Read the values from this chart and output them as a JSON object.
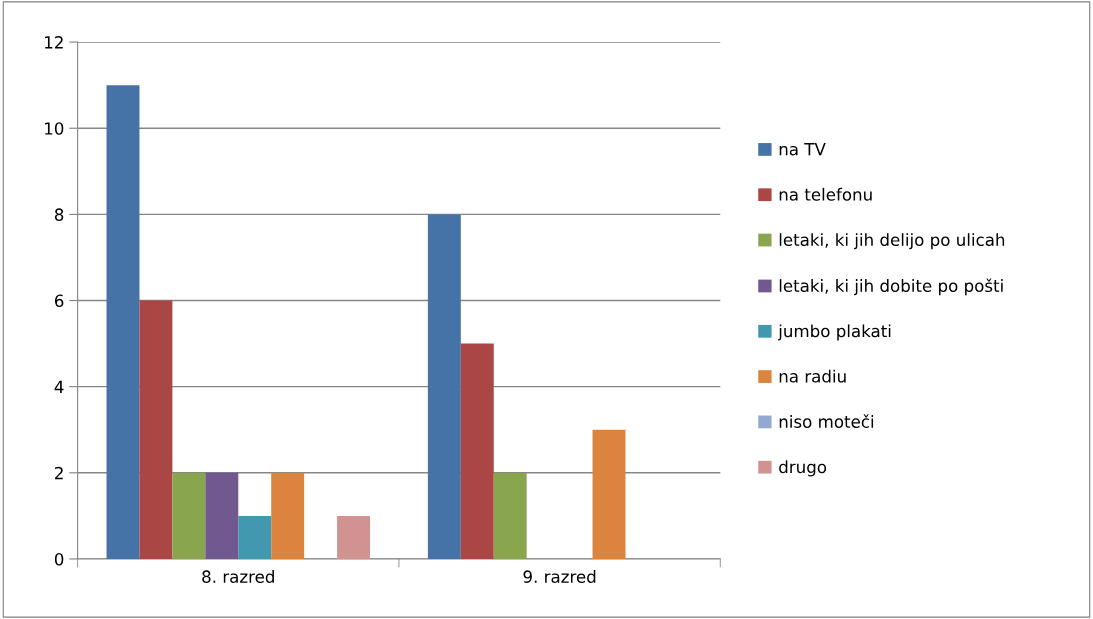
{
  "chart_data": {
    "type": "bar",
    "categories": [
      "8. razred",
      "9. razred"
    ],
    "series": [
      {
        "name": "na TV",
        "color": "#4572a7",
        "values": [
          11,
          8
        ]
      },
      {
        "name": "na telefonu",
        "color": "#aa4643",
        "values": [
          6,
          5
        ]
      },
      {
        "name": "letaki, ki jih delijo po ulicah",
        "color": "#89a54e",
        "values": [
          2,
          2
        ]
      },
      {
        "name": "letaki, ki jih dobite po pošti",
        "color": "#71588f",
        "values": [
          2,
          0
        ]
      },
      {
        "name": "jumbo plakati",
        "color": "#4198af",
        "values": [
          1,
          0
        ]
      },
      {
        "name": "na radiu",
        "color": "#db843d",
        "values": [
          2,
          3
        ]
      },
      {
        "name": "niso moteči",
        "color": "#93a9cf",
        "values": [
          0,
          0
        ]
      },
      {
        "name": "drugo",
        "color": "#d19392",
        "values": [
          1,
          0
        ]
      }
    ],
    "ylim": [
      0,
      12
    ],
    "yticks": [
      0,
      2,
      4,
      6,
      8,
      10,
      12
    ],
    "grid": "y",
    "legend": "right"
  }
}
